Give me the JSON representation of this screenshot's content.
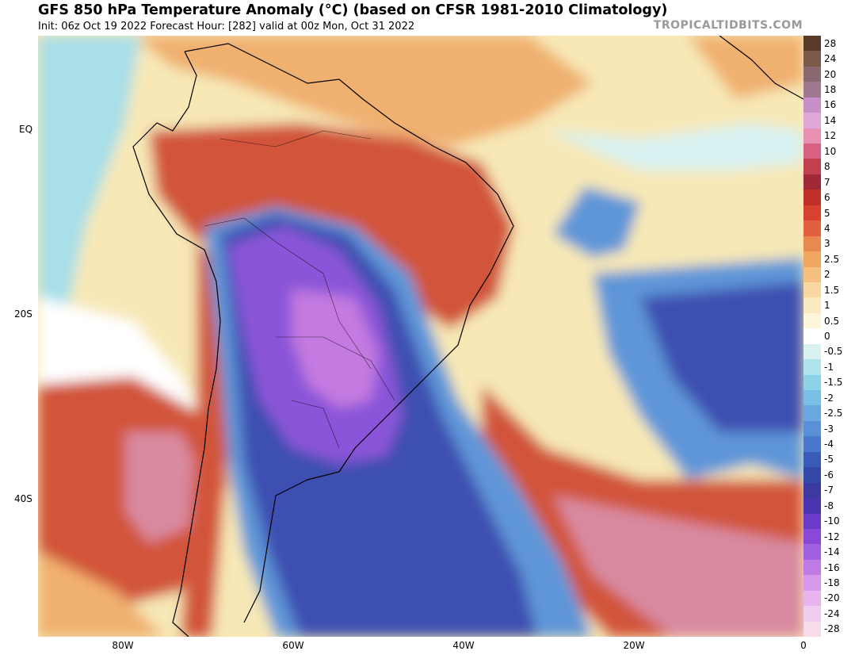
{
  "header": {
    "title": "GFS 850 hPa Temperature Anomaly (°C) (based on CFSR 1981-2010 Climatology)",
    "subtitle": "Init: 06z Oct 19 2022   Forecast Hour: [282]   valid at 00z Mon, Oct 31 2022",
    "brand": "TROPICALTIDBITS.COM"
  },
  "map": {
    "lat_labels": [
      "EQ",
      "20S",
      "40S"
    ],
    "lon_labels": [
      "80W",
      "60W",
      "40W",
      "20W",
      "0"
    ],
    "land_outline_color": "#000000",
    "colors": {
      "warm_light": "#f7e8b6",
      "warm_mid": "#f0b070",
      "warm_strong": "#d2553a",
      "warm_pink": "#d98aa0",
      "cold_light": "#a8dfe8",
      "cold_mid": "#5f96d8",
      "cold_strong": "#3d4fb0",
      "cold_purple": "#8a55d8",
      "cold_violet": "#c47ae0"
    }
  },
  "colorbar": {
    "labels": [
      "28",
      "24",
      "20",
      "18",
      "16",
      "14",
      "12",
      "10",
      "8",
      "7",
      "6",
      "5",
      "4",
      "3",
      "2.5",
      "2",
      "1.5",
      "1",
      "0.5",
      "0",
      "-0.5",
      "-1",
      "-1.5",
      "-2",
      "-2.5",
      "-3",
      "-4",
      "-5",
      "-6",
      "-7",
      "-8",
      "-10",
      "-12",
      "-14",
      "-16",
      "-18",
      "-20",
      "-24",
      "-28"
    ],
    "colors": [
      "#5a3a2a",
      "#7a5a4a",
      "#8a6a70",
      "#a07890",
      "#c890c8",
      "#e0a8d8",
      "#e890b0",
      "#d86080",
      "#c04050",
      "#a02838",
      "#c03028",
      "#d84030",
      "#e06040",
      "#e88a50",
      "#f0a860",
      "#f5c080",
      "#f8d8a0",
      "#faeac0",
      "#fdf5dc",
      "#ffffff",
      "#d8f2f2",
      "#b0e4ec",
      "#8ed2e8",
      "#78bfe6",
      "#6aa8e0",
      "#5a90d8",
      "#4a78cc",
      "#3a5cb8",
      "#3448a8",
      "#3c3aa0",
      "#4a34b0",
      "#6a3ac8",
      "#8848d8",
      "#a060e0",
      "#c07ae4",
      "#d898ec",
      "#e8b4ee",
      "#f0ccee",
      "#f6dcea"
    ]
  }
}
